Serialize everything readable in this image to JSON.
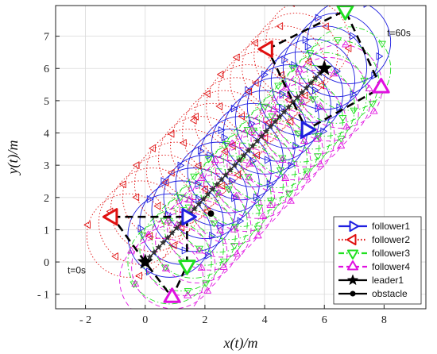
{
  "chart_data": {
    "type": "scatter",
    "xlabel": "x(t)/m",
    "ylabel": "y(t)/m",
    "xlim": [
      -3,
      9.4
    ],
    "ylim": [
      -1.45,
      7.95
    ],
    "xticks": [
      -2,
      0,
      2,
      4,
      6,
      8
    ],
    "yticks": [
      -1,
      0,
      1,
      2,
      3,
      4,
      5,
      6,
      7
    ],
    "xtick_labels": [
      "- 2",
      "0",
      "2",
      "4",
      "6",
      "8"
    ],
    "ytick_labels": [
      "- 1",
      "0",
      "1",
      "2",
      "3",
      "4",
      "5",
      "6",
      "7"
    ],
    "grid": true,
    "legend_position": "bottom-right",
    "annotations": [
      {
        "text": "t=0s",
        "x": -2.6,
        "y": -0.35
      },
      {
        "text": "t=60s",
        "x": 8.1,
        "y": 7.0
      }
    ],
    "circle_radius": 1.4,
    "series": [
      {
        "name": "follower1",
        "color": "#1f1fe0",
        "marker": "triangle-right",
        "line": "solid",
        "offset": [
          1.4,
          1.4
        ],
        "start": [
          1.4,
          1.4
        ],
        "end": [
          5.4,
          4.1
        ]
      },
      {
        "name": "follower2",
        "color": "#e01010",
        "marker": "triangle-left",
        "line": "dotted",
        "offset": [
          -1.1,
          1.4
        ],
        "start": [
          -1.1,
          1.4
        ],
        "end": [
          4.1,
          6.6
        ]
      },
      {
        "name": "follower3",
        "color": "#20e020",
        "marker": "triangle-down",
        "line": "dashdot",
        "offset": [
          1.4,
          -0.1
        ],
        "start": [
          1.4,
          -0.1
        ],
        "end": [
          6.7,
          7.8
        ]
      },
      {
        "name": "follower4",
        "color": "#e010e0",
        "marker": "triangle-up",
        "line": "dashed",
        "offset": [
          0.9,
          -1.1
        ],
        "start": [
          0.9,
          -1.1
        ],
        "end": [
          7.9,
          5.4
        ]
      },
      {
        "name": "leader1",
        "color": "#000000",
        "marker": "star",
        "line": "solid",
        "points": [
          [
            0,
            0
          ],
          [
            6,
            6
          ]
        ]
      },
      {
        "name": "obstacle",
        "color": "#000000",
        "marker": "dot",
        "line": "solid",
        "points": [
          [
            2.2,
            1.5
          ]
        ]
      }
    ],
    "formation_links": [
      {
        "points": [
          [
            -1.1,
            1.4
          ],
          [
            1.4,
            1.4
          ],
          [
            1.4,
            -0.1
          ],
          [
            0.9,
            -1.1
          ],
          [
            0,
            0
          ],
          [
            -1.1,
            1.4
          ]
        ]
      },
      {
        "points": [
          [
            4.1,
            6.6
          ],
          [
            6.7,
            7.8
          ],
          [
            7.9,
            5.4
          ],
          [
            5.4,
            4.1
          ],
          [
            4.1,
            6.6
          ]
        ]
      }
    ]
  }
}
